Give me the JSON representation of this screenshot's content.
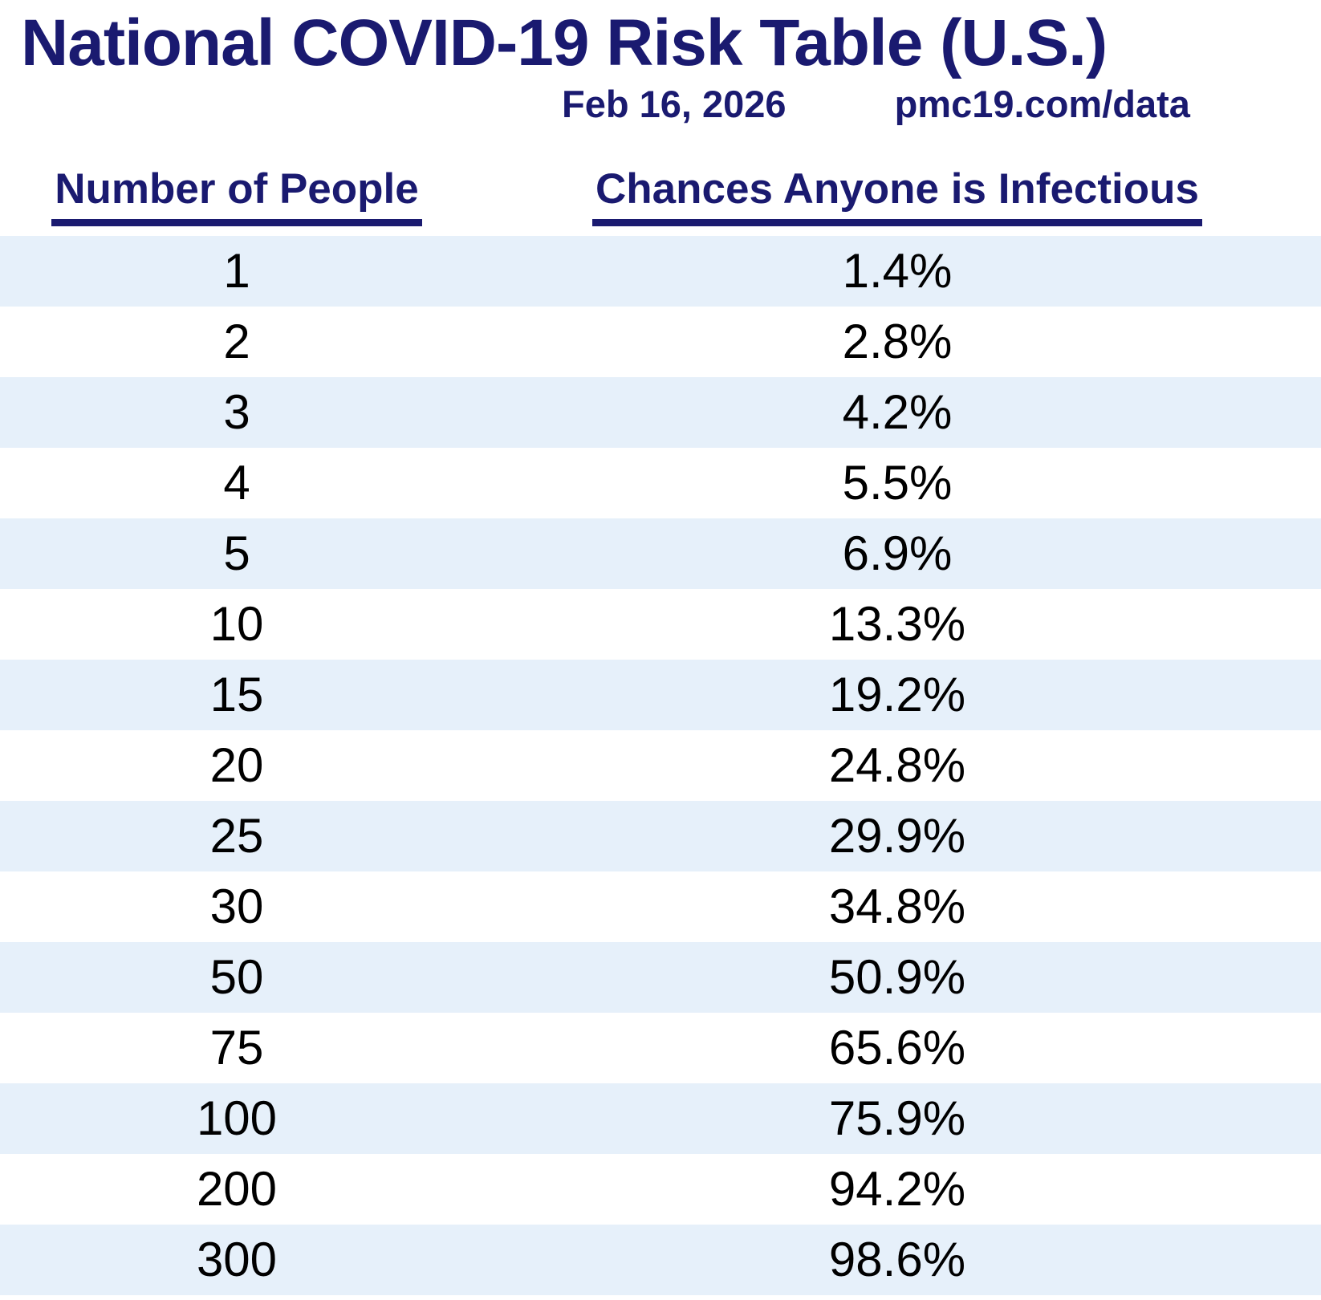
{
  "page": {
    "title": "National COVID-19 Risk Table (U.S.)",
    "date": "Feb 16, 2026",
    "source_url": "pmc19.com/data"
  },
  "colors": {
    "navy": "#1a1a70",
    "stripe_blue": "#e6f0fa",
    "row_text": "#000000",
    "background": "#ffffff"
  },
  "table": {
    "headers": [
      "Number of People",
      "Chances Anyone is Infectious"
    ],
    "rows": [
      {
        "people": "1",
        "chance": "1.4%"
      },
      {
        "people": "2",
        "chance": "2.8%"
      },
      {
        "people": "3",
        "chance": "4.2%"
      },
      {
        "people": "4",
        "chance": "5.5%"
      },
      {
        "people": "5",
        "chance": "6.9%"
      },
      {
        "people": "10",
        "chance": "13.3%"
      },
      {
        "people": "15",
        "chance": "19.2%"
      },
      {
        "people": "20",
        "chance": "24.8%"
      },
      {
        "people": "25",
        "chance": "29.9%"
      },
      {
        "people": "30",
        "chance": "34.8%"
      },
      {
        "people": "50",
        "chance": "50.9%"
      },
      {
        "people": "75",
        "chance": "65.6%"
      },
      {
        "people": "100",
        "chance": "75.9%"
      },
      {
        "people": "200",
        "chance": "94.2%"
      },
      {
        "people": "300",
        "chance": "98.6%"
      }
    ]
  },
  "chart_data": {
    "type": "table",
    "title": "National COVID-19 Risk Table (U.S.)",
    "subtitle": "Feb 16, 2026",
    "source": "pmc19.com/data",
    "columns": [
      "Number of People",
      "Chances Anyone is Infectious"
    ],
    "categories": [
      1,
      2,
      3,
      4,
      5,
      10,
      15,
      20,
      25,
      30,
      50,
      75,
      100,
      200,
      300
    ],
    "values": [
      1.4,
      2.8,
      4.2,
      5.5,
      6.9,
      13.3,
      19.2,
      24.8,
      29.9,
      34.8,
      50.9,
      65.6,
      75.9,
      94.2,
      98.6
    ],
    "value_unit": "%",
    "layout_hints": {
      "striped_rows": true,
      "stripe_color": "#e6f0fa",
      "header_underlined": true,
      "text_alignment": "center"
    }
  }
}
